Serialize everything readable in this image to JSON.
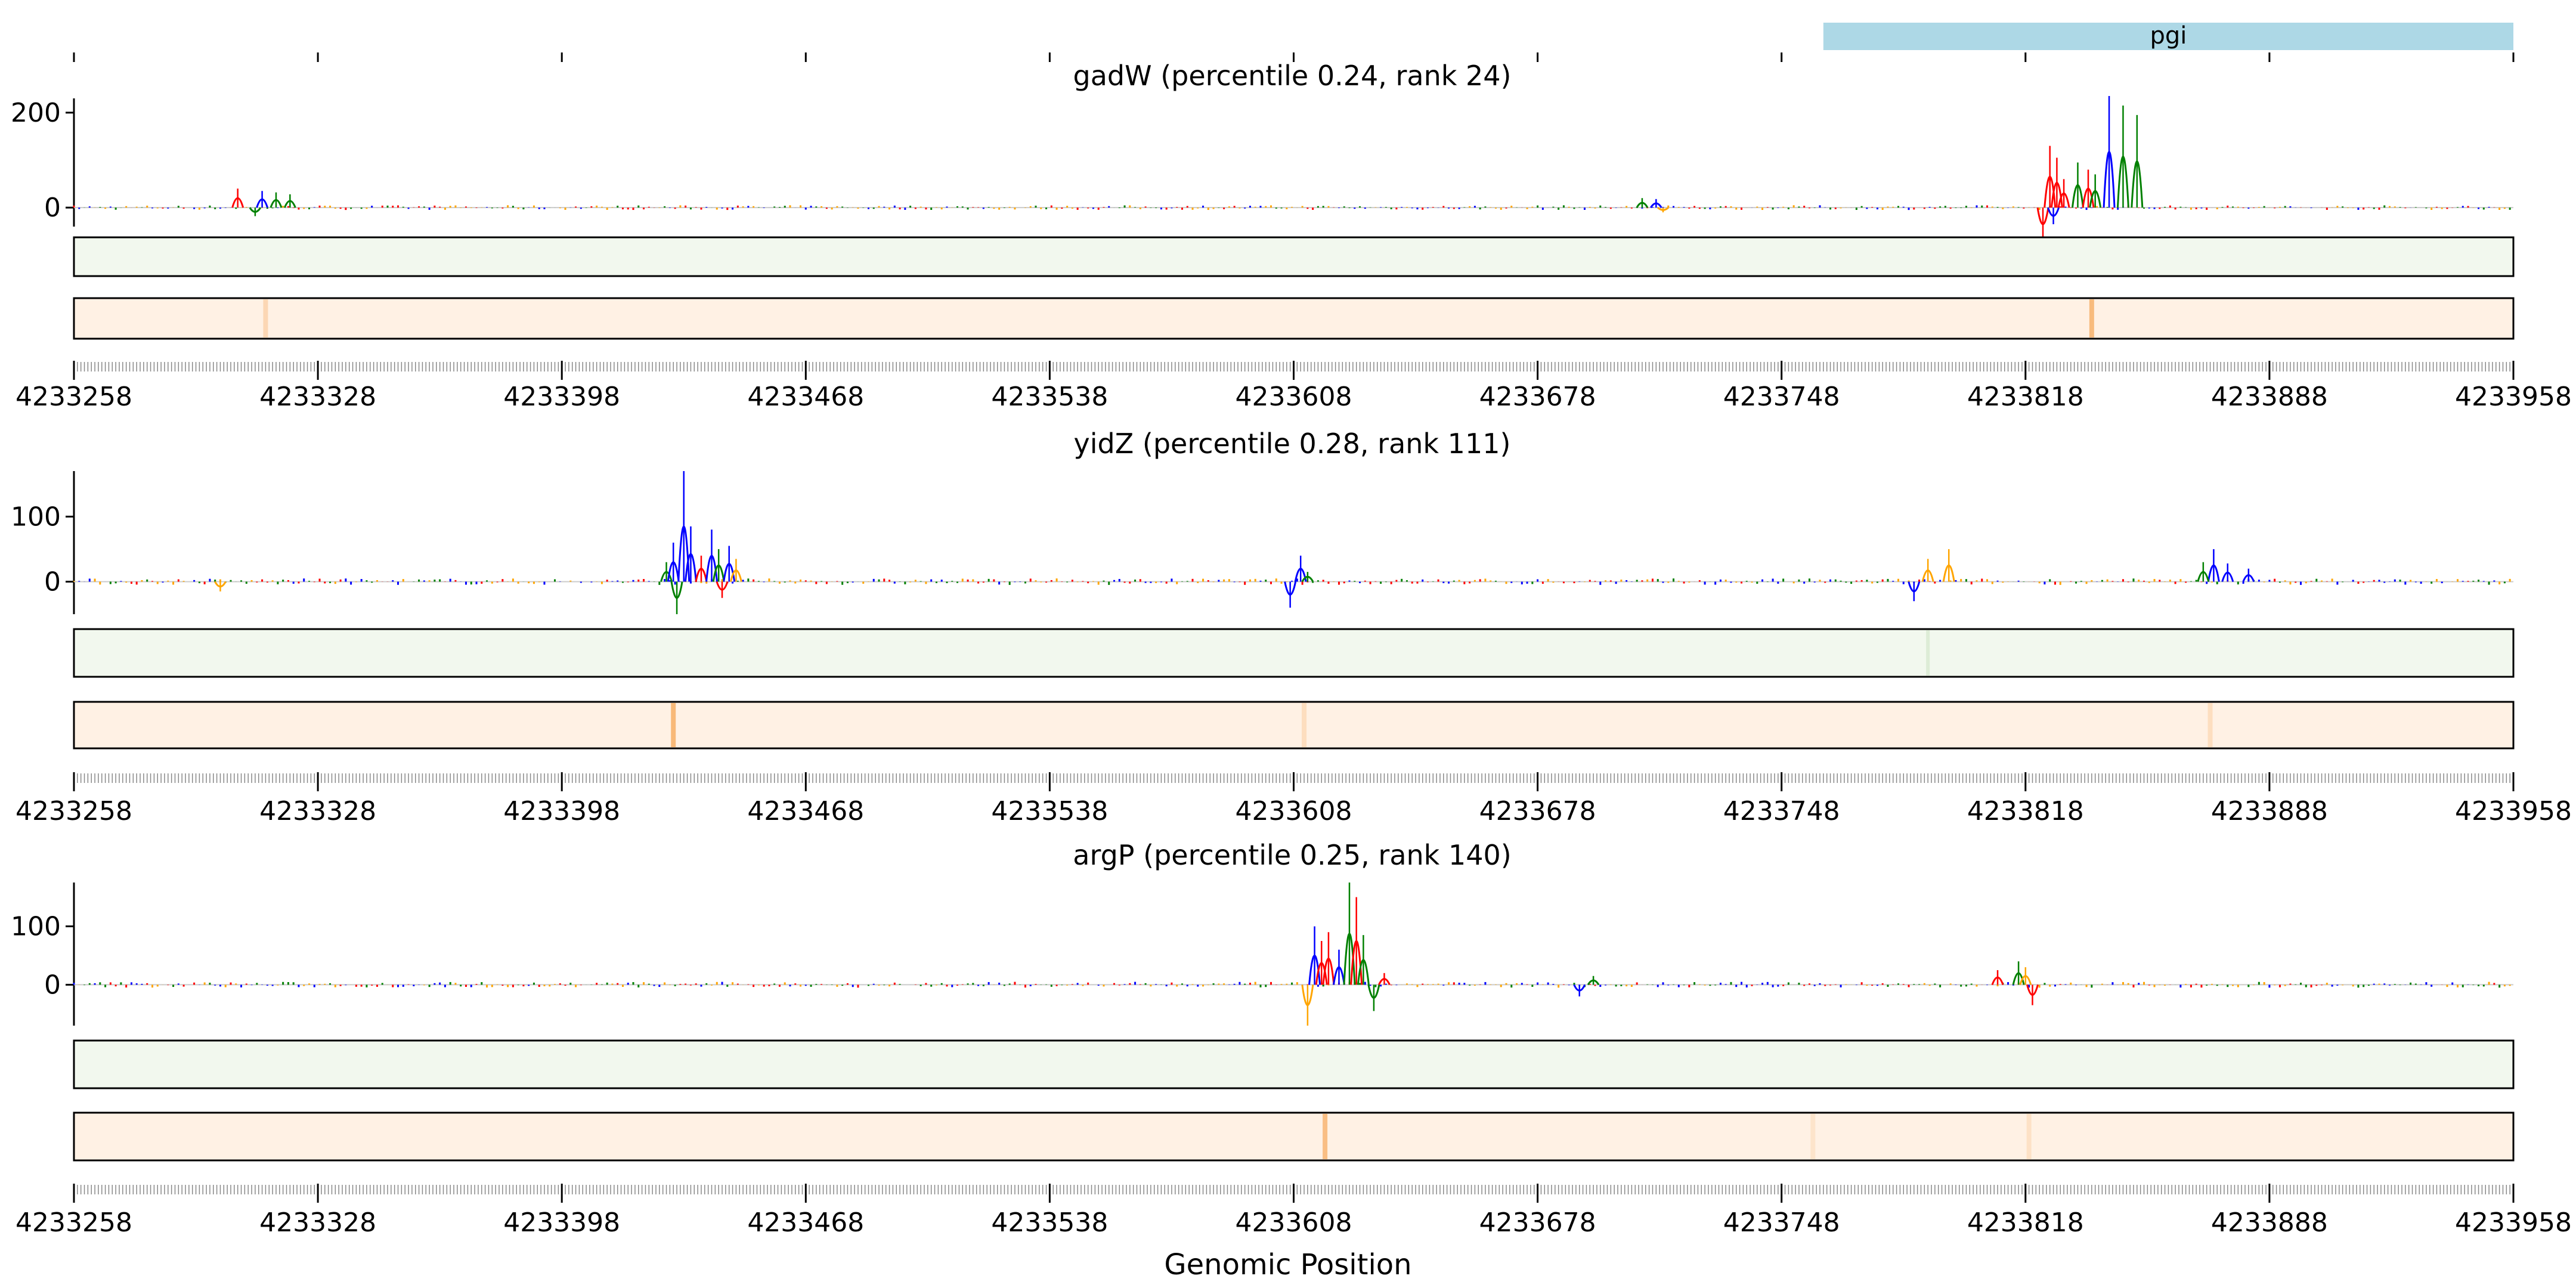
{
  "chart_data": {
    "type": "genome-track",
    "xlabel": "Genomic Position",
    "x_ticks": [
      4233258,
      4233328,
      4233398,
      4233468,
      4233538,
      4233608,
      4233678,
      4233748,
      4233818,
      4233888,
      4233958
    ],
    "x_range": [
      4233258,
      4233958
    ],
    "gene_annotation": {
      "label": "pgi",
      "start": 4233760,
      "end": 4233958,
      "color": "#add8e6"
    },
    "base_colors": {
      "A": "#ff0000",
      "C": "#0000ff",
      "G": "#008000",
      "T": "#ffa500"
    },
    "heatmap_colors": {
      "green_track": "#f2f8ee",
      "orange_track": "#fff1e4",
      "orange_peak": "#f7b26b"
    },
    "panels": [
      {
        "title": "gadW (percentile 0.24, rank 24)",
        "ylim": [
          -40,
          230
        ],
        "y_ticks": [
          0,
          200
        ],
        "attribution_peaks": [
          {
            "x": 4233305,
            "y": 40,
            "base": "A"
          },
          {
            "x": 4233312,
            "y": 35,
            "base": "C"
          },
          {
            "x": 4233316,
            "y": 32,
            "base": "G"
          },
          {
            "x": 4233320,
            "y": 28,
            "base": "G"
          },
          {
            "x": 4233310,
            "y": -18,
            "base": "G"
          },
          {
            "x": 4233708,
            "y": 20,
            "base": "G"
          },
          {
            "x": 4233712,
            "y": 18,
            "base": "C"
          },
          {
            "x": 4233714,
            "y": -10,
            "base": "T"
          },
          {
            "x": 4233825,
            "y": 130,
            "base": "A"
          },
          {
            "x": 4233827,
            "y": 105,
            "base": "A"
          },
          {
            "x": 4233829,
            "y": 60,
            "base": "A"
          },
          {
            "x": 4233833,
            "y": 95,
            "base": "G"
          },
          {
            "x": 4233836,
            "y": 80,
            "base": "A"
          },
          {
            "x": 4233838,
            "y": 70,
            "base": "G"
          },
          {
            "x": 4233842,
            "y": 235,
            "base": "C"
          },
          {
            "x": 4233846,
            "y": 215,
            "base": "G"
          },
          {
            "x": 4233850,
            "y": 195,
            "base": "G"
          },
          {
            "x": 4233823,
            "y": -70,
            "base": "A"
          },
          {
            "x": 4233826,
            "y": -35,
            "base": "C"
          }
        ],
        "green_peaks": [],
        "orange_peaks": [
          {
            "x": 4233313,
            "intensity": 0.4
          },
          {
            "x": 4233837,
            "intensity": 0.85
          }
        ]
      },
      {
        "title": "yidZ (percentile 0.28, rank 111)",
        "ylim": [
          -50,
          170
        ],
        "y_ticks": [
          0,
          100
        ],
        "attribution_peaks": [
          {
            "x": 4233300,
            "y": -15,
            "base": "T"
          },
          {
            "x": 4233428,
            "y": 30,
            "base": "G"
          },
          {
            "x": 4233430,
            "y": 60,
            "base": "C"
          },
          {
            "x": 4233433,
            "y": 170,
            "base": "C"
          },
          {
            "x": 4233435,
            "y": 85,
            "base": "C"
          },
          {
            "x": 4233438,
            "y": 40,
            "base": "A"
          },
          {
            "x": 4233441,
            "y": 80,
            "base": "C"
          },
          {
            "x": 4233443,
            "y": 50,
            "base": "G"
          },
          {
            "x": 4233446,
            "y": 55,
            "base": "C"
          },
          {
            "x": 4233448,
            "y": 35,
            "base": "T"
          },
          {
            "x": 4233431,
            "y": -50,
            "base": "G"
          },
          {
            "x": 4233444,
            "y": -25,
            "base": "A"
          },
          {
            "x": 4233610,
            "y": 40,
            "base": "C"
          },
          {
            "x": 4233612,
            "y": 15,
            "base": "G"
          },
          {
            "x": 4233607,
            "y": -40,
            "base": "C"
          },
          {
            "x": 4233796,
            "y": 50,
            "base": "T"
          },
          {
            "x": 4233790,
            "y": 35,
            "base": "T"
          },
          {
            "x": 4233786,
            "y": -30,
            "base": "C"
          },
          {
            "x": 4233872,
            "y": 50,
            "base": "C"
          },
          {
            "x": 4233869,
            "y": 30,
            "base": "G"
          },
          {
            "x": 4233876,
            "y": 28,
            "base": "C"
          },
          {
            "x": 4233882,
            "y": 20,
            "base": "C"
          }
        ],
        "green_peaks": [
          {
            "x": 4233790,
            "intensity": 0.3
          }
        ],
        "orange_peaks": [
          {
            "x": 4233430,
            "intensity": 0.9
          },
          {
            "x": 4233611,
            "intensity": 0.3
          },
          {
            "x": 4233871,
            "intensity": 0.3
          }
        ]
      },
      {
        "title": "argP (percentile 0.25, rank 140)",
        "ylim": [
          -70,
          175
        ],
        "y_ticks": [
          0,
          100
        ],
        "attribution_peaks": [
          {
            "x": 4233612,
            "y": -70,
            "base": "T"
          },
          {
            "x": 4233614,
            "y": 100,
            "base": "C"
          },
          {
            "x": 4233616,
            "y": 75,
            "base": "A"
          },
          {
            "x": 4233618,
            "y": 90,
            "base": "A"
          },
          {
            "x": 4233621,
            "y": 60,
            "base": "C"
          },
          {
            "x": 4233624,
            "y": 175,
            "base": "G"
          },
          {
            "x": 4233626,
            "y": 150,
            "base": "A"
          },
          {
            "x": 4233628,
            "y": 85,
            "base": "G"
          },
          {
            "x": 4233631,
            "y": -45,
            "base": "G"
          },
          {
            "x": 4233634,
            "y": 20,
            "base": "A"
          },
          {
            "x": 4233690,
            "y": -20,
            "base": "C"
          },
          {
            "x": 4233694,
            "y": 15,
            "base": "G"
          },
          {
            "x": 4233810,
            "y": 25,
            "base": "A"
          },
          {
            "x": 4233816,
            "y": 40,
            "base": "G"
          },
          {
            "x": 4233818,
            "y": 30,
            "base": "T"
          },
          {
            "x": 4233820,
            "y": -35,
            "base": "A"
          }
        ],
        "green_peaks": [],
        "orange_peaks": [
          {
            "x": 4233617,
            "intensity": 0.8
          },
          {
            "x": 4233757,
            "intensity": 0.2
          },
          {
            "x": 4233819,
            "intensity": 0.25
          }
        ]
      }
    ]
  }
}
